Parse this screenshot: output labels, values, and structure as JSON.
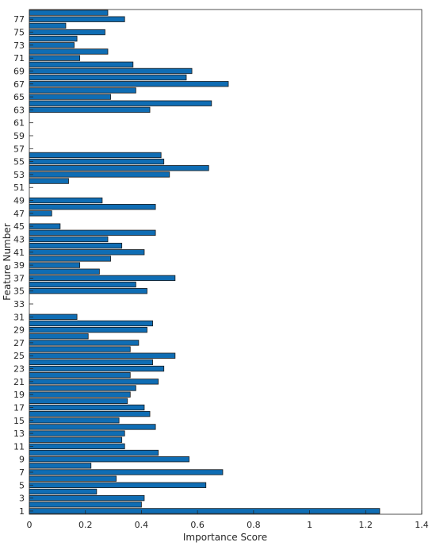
{
  "chart_data": {
    "type": "bar",
    "orientation": "horizontal",
    "xlabel": "Importance Score",
    "ylabel": "Feature Number",
    "xlim": [
      0,
      1.4
    ],
    "ylim": [
      0.5,
      78.5
    ],
    "xticks": [
      0,
      0.2,
      0.4,
      0.6,
      0.8,
      1,
      1.2,
      1.4
    ],
    "xtick_labels": [
      "0",
      "0.2",
      "0.4",
      "0.6",
      "0.8",
      "1",
      "1.2",
      "1.4"
    ],
    "ytick_labels": [
      "1",
      "3",
      "5",
      "7",
      "9",
      "11",
      "13",
      "15",
      "17",
      "19",
      "21",
      "23",
      "25",
      "27",
      "29",
      "31",
      "33",
      "35",
      "37",
      "39",
      "41",
      "43",
      "45",
      "47",
      "49",
      "51",
      "53",
      "55",
      "57",
      "59",
      "61",
      "63",
      "65",
      "67",
      "69",
      "71",
      "73",
      "75",
      "77"
    ],
    "bar_color": "#0f6db4",
    "edge_color": "#1a1a1a",
    "grid": false,
    "categories": [
      1,
      2,
      3,
      4,
      5,
      6,
      7,
      8,
      9,
      10,
      11,
      12,
      13,
      14,
      15,
      16,
      17,
      18,
      19,
      20,
      21,
      22,
      23,
      24,
      25,
      26,
      27,
      28,
      29,
      30,
      31,
      32,
      33,
      34,
      35,
      36,
      37,
      38,
      39,
      40,
      41,
      42,
      43,
      44,
      45,
      46,
      47,
      48,
      49,
      50,
      51,
      52,
      53,
      54,
      55,
      56,
      57,
      58,
      59,
      60,
      61,
      62,
      63,
      64,
      65,
      66,
      67,
      68,
      69,
      70,
      71,
      72,
      73,
      74,
      75,
      76,
      77,
      78
    ],
    "values": [
      1.25,
      0.4,
      0.41,
      0.24,
      0.63,
      0.31,
      0.69,
      0.22,
      0.57,
      0.46,
      0.34,
      0.33,
      0.34,
      0.45,
      0.32,
      0.43,
      0.41,
      0.35,
      0.36,
      0.38,
      0.46,
      0.36,
      0.48,
      0.44,
      0.52,
      0.36,
      0.39,
      0.21,
      0.42,
      0.44,
      0.17,
      0.0,
      0.0,
      0.0,
      0.42,
      0.38,
      0.52,
      0.25,
      0.18,
      0.29,
      0.41,
      0.33,
      0.28,
      0.45,
      0.11,
      0.0,
      0.08,
      0.45,
      0.26,
      0.0,
      0.0,
      0.14,
      0.5,
      0.64,
      0.48,
      0.47,
      0.0,
      0.0,
      0.0,
      0.0,
      0.0,
      0.0,
      0.43,
      0.65,
      0.29,
      0.38,
      0.71,
      0.56,
      0.58,
      0.37,
      0.18,
      0.28,
      0.16,
      0.17,
      0.27,
      0.13,
      0.34,
      0.28
    ]
  }
}
